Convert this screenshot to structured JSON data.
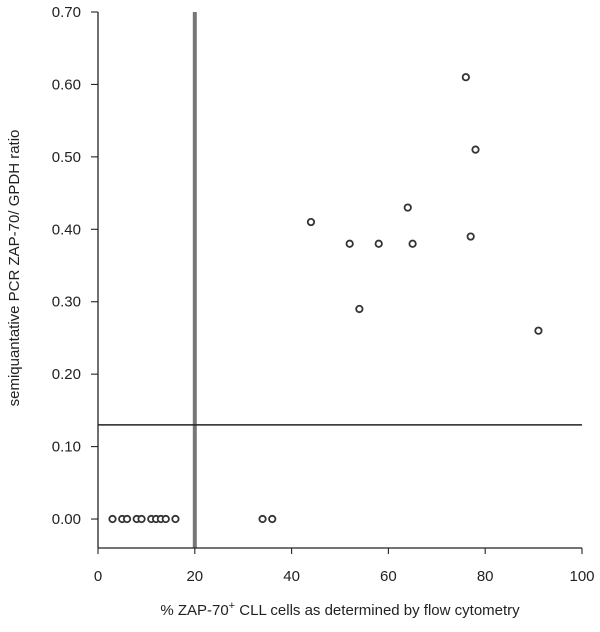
{
  "chart_data": {
    "type": "scatter",
    "title": "",
    "xlabel": {
      "prefix": "% ZAP-70",
      "superscript": "+",
      "suffix": " CLL cells as determined by flow cytometry"
    },
    "ylabel": "semiquantative PCR ZAP-70/ GPDH ratio",
    "xlim": [
      0,
      100
    ],
    "ylim": [
      -0.04,
      0.7
    ],
    "x_ticks": [
      {
        "value": 0,
        "label": "0"
      },
      {
        "value": 20,
        "label": "20"
      },
      {
        "value": 40,
        "label": "40"
      },
      {
        "value": 60,
        "label": "60"
      },
      {
        "value": 80,
        "label": "80"
      },
      {
        "value": 100,
        "label": "100"
      }
    ],
    "y_ticks": [
      {
        "value": 0.0,
        "label": "0.00"
      },
      {
        "value": 0.1,
        "label": "0.10"
      },
      {
        "value": 0.2,
        "label": "0.20"
      },
      {
        "value": 0.3,
        "label": "0.30"
      },
      {
        "value": 0.4,
        "label": "0.40"
      },
      {
        "value": 0.5,
        "label": "0.50"
      },
      {
        "value": 0.6,
        "label": "0.60"
      },
      {
        "value": 0.7,
        "label": "0.70"
      }
    ],
    "grid": false,
    "reference_lines": {
      "vertical_x": 20,
      "horizontal_y": 0.13
    },
    "colors": {
      "axis": "#222222",
      "points": "#333333",
      "vertical_line": "#777777",
      "horizontal_line": "#222222"
    },
    "series": [
      {
        "points": [
          {
            "x": 3,
            "y": 0.0
          },
          {
            "x": 5,
            "y": 0.0
          },
          {
            "x": 6,
            "y": 0.0
          },
          {
            "x": 8,
            "y": 0.0
          },
          {
            "x": 9,
            "y": 0.0
          },
          {
            "x": 11,
            "y": 0.0
          },
          {
            "x": 12,
            "y": 0.0
          },
          {
            "x": 13,
            "y": 0.0
          },
          {
            "x": 14,
            "y": 0.0
          },
          {
            "x": 16,
            "y": 0.0
          },
          {
            "x": 34,
            "y": 0.0
          },
          {
            "x": 36,
            "y": 0.0
          },
          {
            "x": 44,
            "y": 0.41
          },
          {
            "x": 52,
            "y": 0.38
          },
          {
            "x": 54,
            "y": 0.29
          },
          {
            "x": 58,
            "y": 0.38
          },
          {
            "x": 64,
            "y": 0.43
          },
          {
            "x": 65,
            "y": 0.38
          },
          {
            "x": 76,
            "y": 0.61
          },
          {
            "x": 77,
            "y": 0.39
          },
          {
            "x": 78,
            "y": 0.51
          },
          {
            "x": 91,
            "y": 0.26
          }
        ]
      }
    ]
  }
}
